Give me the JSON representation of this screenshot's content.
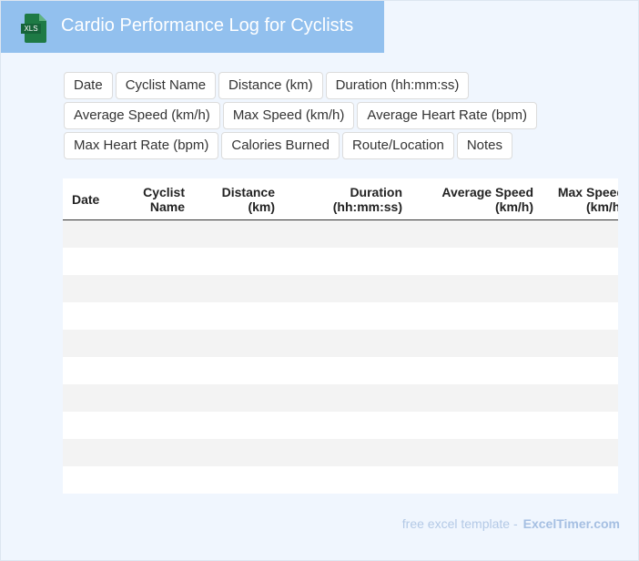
{
  "header": {
    "icon_label": "XLS",
    "title": "Cardio Performance Log for Cyclists"
  },
  "fields": [
    "Date",
    "Cyclist Name",
    "Distance (km)",
    "Duration (hh:mm:ss)",
    "Average Speed (km/h)",
    "Max Speed (km/h)",
    "Average Heart Rate (bpm)",
    "Max Heart Rate (bpm)",
    "Calories Burned",
    "Route/Location",
    "Notes"
  ],
  "table": {
    "columns": [
      "Date",
      "Cyclist Name",
      "Distance (km)",
      "Duration (hh:mm:ss)",
      "Average Speed (km/h)",
      "Max Speed (km/h)"
    ]
  },
  "footer": {
    "text": "free excel template -",
    "brand": "ExcelTimer.com"
  }
}
